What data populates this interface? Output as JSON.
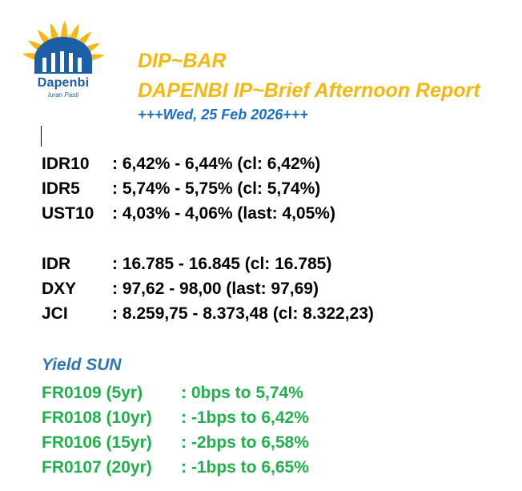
{
  "logo": {
    "icon": "dapenbi-sun-building-logo",
    "name": "Dapenbi",
    "tagline": "Iuran Pasti",
    "colors": {
      "petal": "#f6b80f",
      "building": "#1d5fa6"
    }
  },
  "header": {
    "title": "DIP~BAR",
    "subtitle": "DAPENBI IP~Brief Afternoon Report",
    "date": "+++Wed, 25 Feb 2026+++"
  },
  "rates": [
    {
      "label": "IDR10",
      "value": ": 6,42% - 6,44% (cl: 6,42%)"
    },
    {
      "label": "IDR5",
      "value": ": 5,74% - 5,75% (cl: 5,74%)"
    },
    {
      "label": "UST10",
      "value": ": 4,03% - 4,06% (last: 4,05%)"
    }
  ],
  "markets": [
    {
      "label": "IDR",
      "value": ": 16.785 - 16.845 (cl: 16.785)"
    },
    {
      "label": "DXY",
      "value": ": 97,62 - 98,00 (last: 97,69)"
    },
    {
      "label": "JCI",
      "value": ": 8.259,75 - 8.373,48 (cl: 8.322,23)"
    }
  ],
  "yield_sun": {
    "title": "Yield SUN",
    "items": [
      {
        "label": "FR0109 (5yr)",
        "value": ": 0bps to 5,74%"
      },
      {
        "label": "FR0108 (10yr)",
        "value": ": -1bps to 6,42%"
      },
      {
        "label": "FR0106 (15yr)",
        "value": ": -2bps to 6,58%"
      },
      {
        "label": "FR0107 (20yr)",
        "value": ": -1bps to 6,65%"
      }
    ]
  }
}
